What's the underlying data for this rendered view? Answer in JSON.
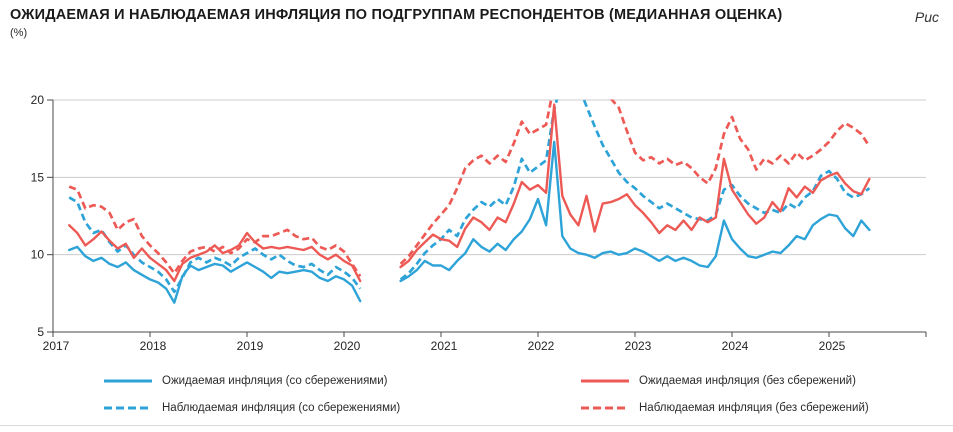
{
  "header": {
    "title": "ОЖИДАЕМАЯ И НАБЛЮДАЕМАЯ ИНФЛЯЦИЯ ПО ПОДГРУППАМ РЕСПОНДЕНТОВ (МЕДИАННАЯ ОЦЕНКА)",
    "subtitle": "(%)",
    "figure_label": "Рис"
  },
  "chart_data": {
    "type": "line",
    "frequency": "monthly",
    "start": "2017-03",
    "end": "2025-06",
    "gap_months": [
      "2020-04",
      "2020-05",
      "2020-06",
      "2020-07"
    ],
    "x_tick_labels": [
      "2017",
      "2018",
      "2019",
      "2020",
      "2021",
      "2022",
      "2023",
      "2024",
      "2025"
    ],
    "y_ticks": [
      5,
      10,
      15,
      20
    ],
    "ylim": [
      5,
      20
    ],
    "values_clipped_above": 20,
    "grid": "horizontal",
    "legend_position": "bottom",
    "colors": {
      "with_savings": "#2EA3D8",
      "without_savings": "#ED5A55"
    },
    "series": [
      {
        "name": "Ожидаемая инфляция (со сбережениями)",
        "color": "#2EA3D8",
        "style": "solid",
        "values": [
          10.3,
          10.5,
          9.9,
          9.6,
          9.8,
          9.4,
          9.2,
          9.5,
          9.0,
          8.7,
          8.4,
          8.2,
          7.8,
          6.9,
          8.6,
          9.3,
          9.0,
          9.2,
          9.4,
          9.3,
          8.9,
          9.2,
          9.5,
          9.2,
          8.9,
          8.5,
          8.9,
          8.8,
          8.9,
          9.0,
          8.9,
          8.5,
          8.3,
          8.6,
          8.4,
          8.0,
          7.0,
          null,
          null,
          null,
          null,
          8.3,
          8.6,
          9.0,
          9.6,
          9.3,
          9.3,
          9.0,
          9.6,
          10.1,
          11.0,
          10.5,
          10.2,
          10.7,
          10.3,
          11.0,
          11.5,
          12.3,
          13.6,
          11.9,
          17.3,
          11.2,
          10.4,
          10.1,
          10.0,
          9.8,
          10.1,
          10.2,
          10.0,
          10.1,
          10.4,
          10.2,
          9.9,
          9.6,
          9.9,
          9.6,
          9.8,
          9.6,
          9.3,
          9.2,
          9.9,
          12.2,
          11.0,
          10.4,
          9.9,
          9.8,
          10.0,
          10.2,
          10.1,
          10.6,
          11.2,
          11.0,
          11.9,
          12.3,
          12.6,
          12.5,
          11.7,
          11.2,
          12.2,
          11.6
        ]
      },
      {
        "name": "Ожидаемая инфляция (без сбережений)",
        "color": "#ED5A55",
        "style": "solid",
        "values": [
          11.9,
          11.4,
          10.6,
          11.0,
          11.5,
          10.9,
          10.4,
          10.7,
          9.8,
          10.4,
          9.8,
          9.4,
          9.0,
          8.3,
          9.4,
          9.8,
          10.0,
          10.2,
          10.6,
          10.1,
          10.3,
          10.6,
          11.4,
          10.8,
          10.4,
          10.5,
          10.4,
          10.5,
          10.4,
          10.3,
          10.5,
          10.0,
          9.7,
          10.0,
          9.6,
          9.3,
          8.3,
          null,
          null,
          null,
          null,
          9.2,
          9.6,
          10.3,
          10.8,
          11.3,
          11.0,
          10.9,
          10.5,
          11.7,
          12.4,
          12.1,
          11.6,
          12.4,
          12.1,
          13.3,
          14.7,
          14.2,
          14.5,
          14.0,
          19.7,
          13.8,
          12.6,
          11.9,
          13.8,
          11.5,
          13.3,
          13.4,
          13.6,
          13.9,
          13.2,
          12.7,
          12.1,
          11.4,
          11.9,
          11.6,
          12.2,
          11.6,
          12.4,
          12.1,
          12.4,
          16.2,
          14.2,
          13.4,
          12.6,
          12.0,
          12.4,
          13.4,
          12.8,
          14.3,
          13.7,
          14.4,
          14.0,
          14.8,
          15.1,
          15.3,
          14.6,
          14.1,
          13.9,
          14.9
        ]
      },
      {
        "name": "Наблюдаемая инфляция (со сбережениями)",
        "color": "#2EA3D8",
        "style": "dashed",
        "values": [
          13.7,
          13.4,
          12.1,
          11.4,
          11.6,
          10.8,
          10.2,
          10.6,
          10.0,
          9.5,
          9.2,
          8.9,
          8.4,
          7.6,
          8.5,
          9.5,
          9.8,
          9.5,
          9.8,
          9.6,
          9.3,
          9.8,
          10.1,
          10.4,
          10.0,
          9.7,
          10.0,
          9.6,
          9.3,
          9.2,
          9.4,
          9.0,
          8.7,
          9.2,
          8.9,
          8.5,
          7.8,
          null,
          null,
          null,
          null,
          8.4,
          8.8,
          9.4,
          10.1,
          10.6,
          11.0,
          11.6,
          11.2,
          12.3,
          12.9,
          13.4,
          13.1,
          13.6,
          13.2,
          14.4,
          16.2,
          15.3,
          15.7,
          16.1,
          19.4,
          21.3,
          21.8,
          20.9,
          19.6,
          18.3,
          17.1,
          16.2,
          15.3,
          14.7,
          14.3,
          13.8,
          13.4,
          13.0,
          13.3,
          13.0,
          12.7,
          12.4,
          12.3,
          12.2,
          12.6,
          14.2,
          14.5,
          13.8,
          13.3,
          13.0,
          12.7,
          12.9,
          12.7,
          13.3,
          13.0,
          13.7,
          14.1,
          15.1,
          15.4,
          14.9,
          14.0,
          13.7,
          13.9,
          14.3
        ]
      },
      {
        "name": "Наблюдаемая инфляция (без сбережений)",
        "color": "#ED5A55",
        "style": "dashed",
        "values": [
          14.4,
          14.2,
          13.0,
          13.2,
          13.1,
          12.7,
          11.6,
          12.1,
          12.3,
          11.2,
          10.6,
          10.1,
          9.5,
          8.8,
          9.6,
          10.2,
          10.4,
          10.5,
          10.2,
          10.5,
          10.1,
          10.4,
          11.0,
          10.8,
          11.2,
          11.2,
          11.4,
          11.6,
          11.2,
          11.0,
          11.1,
          10.5,
          10.3,
          10.6,
          10.2,
          9.4,
          8.6,
          null,
          null,
          null,
          null,
          9.4,
          9.9,
          10.6,
          11.3,
          12.0,
          12.6,
          13.2,
          14.3,
          15.6,
          16.1,
          16.4,
          15.9,
          16.4,
          16.0,
          17.2,
          18.6,
          17.8,
          18.1,
          18.4,
          21.0,
          22.5,
          22.3,
          21.8,
          21.3,
          21.0,
          20.6,
          20.1,
          19.5,
          18.0,
          16.6,
          16.1,
          16.3,
          15.9,
          16.2,
          15.8,
          16.0,
          15.6,
          15.0,
          14.6,
          15.6,
          17.8,
          18.9,
          17.5,
          16.8,
          15.5,
          16.2,
          15.9,
          16.4,
          15.9,
          16.6,
          16.1,
          16.4,
          16.8,
          17.3,
          18.0,
          18.5,
          18.2,
          17.8,
          17.0
        ]
      }
    ]
  },
  "legend": {
    "items": [
      {
        "label": "Ожидаемая инфляция (со сбережениями)",
        "series": 0
      },
      {
        "label": "Ожидаемая инфляция (без сбережений)",
        "series": 1
      },
      {
        "label": "Наблюдаемая инфляция (со сбережениями)",
        "series": 2
      },
      {
        "label": "Наблюдаемая инфляция (без сбережений)",
        "series": 3
      }
    ]
  }
}
